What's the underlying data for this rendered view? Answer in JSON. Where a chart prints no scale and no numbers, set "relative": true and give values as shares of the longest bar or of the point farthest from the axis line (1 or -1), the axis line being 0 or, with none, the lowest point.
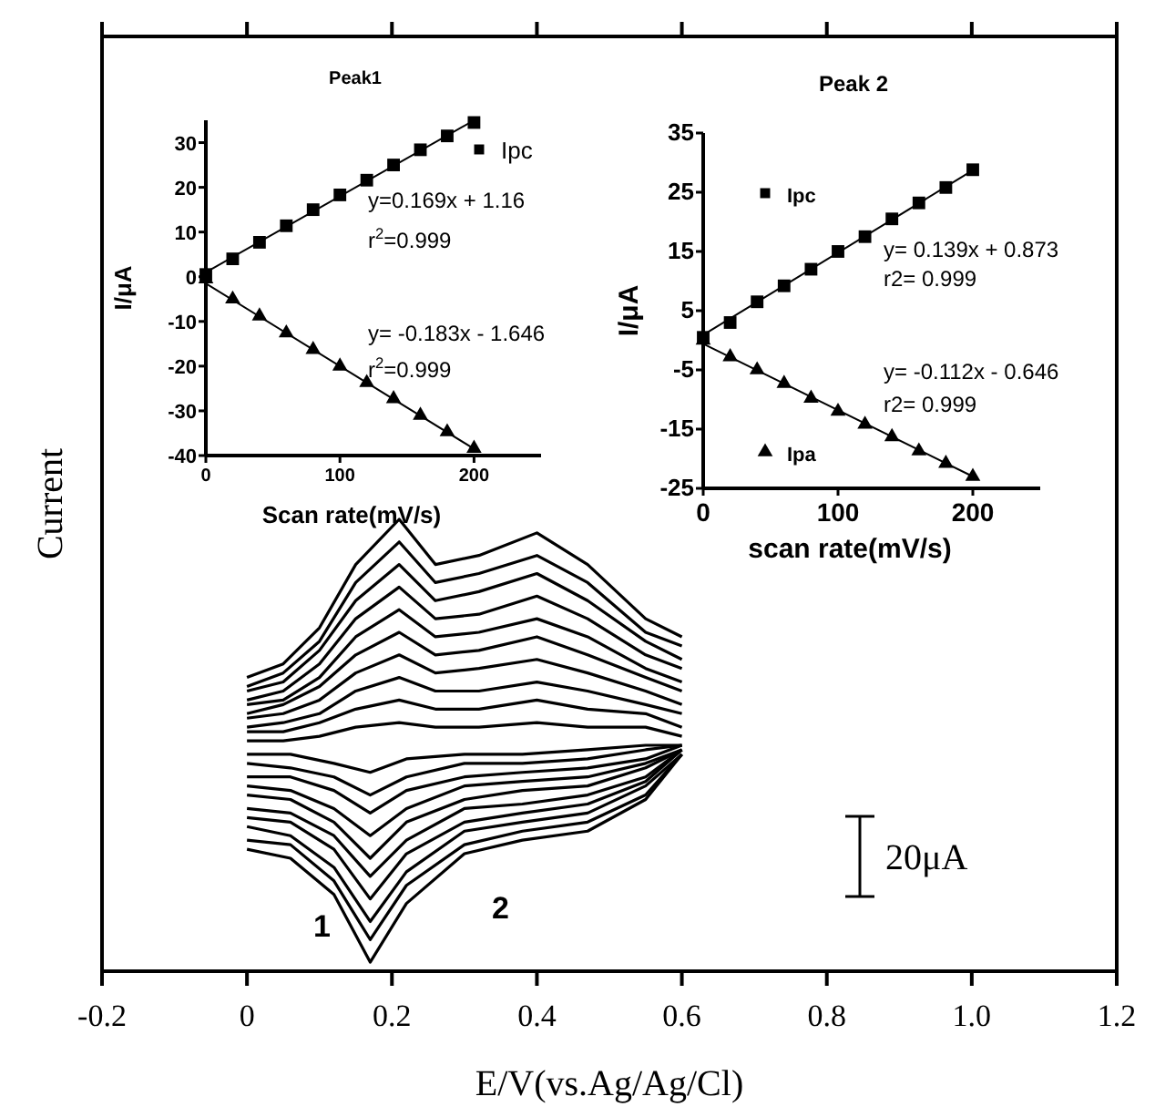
{
  "chart_data": [
    {
      "type": "line",
      "xlabel": "E/V(vs.Ag/Ag/Cl)",
      "ylabel": "Current",
      "relative": true,
      "xlim": [
        -0.2,
        1.2
      ],
      "xticks": [
        -0.2,
        0,
        0.2,
        0.4,
        0.6,
        0.8,
        {
          "value": 1,
          "label": "1.0"
        },
        1.2
      ],
      "series": [
        {
          "color": "#000000",
          "x": [
            0,
            0.05,
            0.1,
            0.15,
            0.21,
            0.26,
            0.32,
            0.4,
            0.47,
            0.55,
            0.6
          ],
          "values": [
            0.51,
            0.51,
            0.52,
            0.54,
            0.55,
            0.54,
            0.54,
            0.55,
            0.54,
            0.54,
            0.52
          ]
        },
        {
          "color": "#000000",
          "x": [
            0,
            0.05,
            0.1,
            0.15,
            0.21,
            0.26,
            0.32,
            0.4,
            0.47,
            0.55,
            0.6
          ],
          "values": [
            0.53,
            0.53,
            0.55,
            0.58,
            0.6,
            0.58,
            0.58,
            0.6,
            0.58,
            0.57,
            0.54
          ]
        },
        {
          "color": "#000000",
          "x": [
            0,
            0.05,
            0.1,
            0.15,
            0.21,
            0.26,
            0.32,
            0.4,
            0.47,
            0.55,
            0.6
          ],
          "values": [
            0.54,
            0.55,
            0.57,
            0.62,
            0.65,
            0.62,
            0.62,
            0.64,
            0.62,
            0.59,
            0.57
          ]
        },
        {
          "color": "#000000",
          "x": [
            0,
            0.05,
            0.1,
            0.15,
            0.21,
            0.26,
            0.32,
            0.4,
            0.47,
            0.55,
            0.6
          ],
          "values": [
            0.56,
            0.57,
            0.6,
            0.66,
            0.7,
            0.66,
            0.67,
            0.69,
            0.66,
            0.62,
            0.59
          ]
        },
        {
          "color": "#000000",
          "x": [
            0,
            0.05,
            0.1,
            0.15,
            0.21,
            0.26,
            0.32,
            0.4,
            0.47,
            0.55,
            0.6
          ],
          "values": [
            0.57,
            0.59,
            0.63,
            0.7,
            0.75,
            0.7,
            0.71,
            0.74,
            0.7,
            0.65,
            0.62
          ]
        },
        {
          "color": "#000000",
          "x": [
            0,
            0.05,
            0.1,
            0.15,
            0.21,
            0.26,
            0.32,
            0.4,
            0.47,
            0.55,
            0.6
          ],
          "values": [
            0.59,
            0.6,
            0.65,
            0.74,
            0.8,
            0.74,
            0.75,
            0.78,
            0.74,
            0.67,
            0.64
          ]
        },
        {
          "color": "#000000",
          "x": [
            0,
            0.05,
            0.1,
            0.15,
            0.21,
            0.26,
            0.32,
            0.4,
            0.47,
            0.55,
            0.6
          ],
          "values": [
            0.6,
            0.62,
            0.68,
            0.78,
            0.85,
            0.78,
            0.79,
            0.83,
            0.78,
            0.7,
            0.67
          ]
        },
        {
          "color": "#000000",
          "x": [
            0,
            0.05,
            0.1,
            0.15,
            0.21,
            0.26,
            0.32,
            0.4,
            0.47,
            0.55,
            0.6
          ],
          "values": [
            0.62,
            0.64,
            0.71,
            0.82,
            0.9,
            0.82,
            0.84,
            0.88,
            0.82,
            0.73,
            0.69
          ]
        },
        {
          "color": "#000000",
          "x": [
            0,
            0.05,
            0.1,
            0.15,
            0.21,
            0.26,
            0.32,
            0.4,
            0.47,
            0.55,
            0.6
          ],
          "values": [
            0.63,
            0.66,
            0.73,
            0.86,
            0.95,
            0.86,
            0.88,
            0.92,
            0.86,
            0.75,
            0.72
          ]
        },
        {
          "color": "#000000",
          "x": [
            0,
            0.05,
            0.1,
            0.15,
            0.21,
            0.26,
            0.32,
            0.4,
            0.47,
            0.55,
            0.6
          ],
          "values": [
            0.65,
            0.68,
            0.76,
            0.9,
            1.0,
            0.9,
            0.92,
            0.97,
            0.9,
            0.78,
            0.74
          ]
        },
        {
          "color": "#000000",
          "x": [
            0,
            0.06,
            0.12,
            0.17,
            0.22,
            0.3,
            0.38,
            0.47,
            0.55,
            0.6
          ],
          "values": [
            0.48,
            0.48,
            0.46,
            0.44,
            0.47,
            0.48,
            0.48,
            0.49,
            0.5,
            0.5
          ]
        },
        {
          "color": "#000000",
          "x": [
            0,
            0.06,
            0.12,
            0.17,
            0.22,
            0.3,
            0.38,
            0.47,
            0.55,
            0.6
          ],
          "values": [
            0.46,
            0.45,
            0.43,
            0.39,
            0.43,
            0.46,
            0.46,
            0.47,
            0.49,
            0.5
          ]
        },
        {
          "color": "#000000",
          "x": [
            0,
            0.06,
            0.12,
            0.17,
            0.22,
            0.3,
            0.38,
            0.47,
            0.55,
            0.6
          ],
          "values": [
            0.43,
            0.43,
            0.4,
            0.35,
            0.4,
            0.43,
            0.44,
            0.45,
            0.47,
            0.5
          ]
        },
        {
          "color": "#000000",
          "x": [
            0,
            0.06,
            0.12,
            0.17,
            0.22,
            0.3,
            0.38,
            0.47,
            0.55,
            0.6
          ],
          "values": [
            0.41,
            0.4,
            0.36,
            0.3,
            0.36,
            0.41,
            0.42,
            0.43,
            0.46,
            0.49
          ]
        },
        {
          "color": "#000000",
          "x": [
            0,
            0.06,
            0.12,
            0.17,
            0.22,
            0.3,
            0.38,
            0.47,
            0.55,
            0.6
          ],
          "values": [
            0.39,
            0.38,
            0.33,
            0.25,
            0.33,
            0.38,
            0.4,
            0.41,
            0.45,
            0.49
          ]
        },
        {
          "color": "#000000",
          "x": [
            0,
            0.06,
            0.12,
            0.17,
            0.22,
            0.3,
            0.38,
            0.47,
            0.55,
            0.6
          ],
          "values": [
            0.36,
            0.35,
            0.3,
            0.21,
            0.29,
            0.36,
            0.37,
            0.39,
            0.43,
            0.49
          ]
        },
        {
          "color": "#000000",
          "x": [
            0,
            0.06,
            0.12,
            0.17,
            0.22,
            0.3,
            0.38,
            0.47,
            0.55,
            0.6
          ],
          "values": [
            0.34,
            0.33,
            0.27,
            0.16,
            0.26,
            0.33,
            0.35,
            0.37,
            0.42,
            0.49
          ]
        },
        {
          "color": "#000000",
          "x": [
            0,
            0.06,
            0.12,
            0.17,
            0.22,
            0.3,
            0.38,
            0.47,
            0.55,
            0.6
          ],
          "values": [
            0.32,
            0.3,
            0.23,
            0.11,
            0.22,
            0.31,
            0.33,
            0.35,
            0.41,
            0.48
          ]
        },
        {
          "color": "#000000",
          "x": [
            0,
            0.06,
            0.12,
            0.17,
            0.22,
            0.3,
            0.38,
            0.47,
            0.55,
            0.6
          ],
          "values": [
            0.29,
            0.28,
            0.2,
            0.07,
            0.19,
            0.28,
            0.31,
            0.33,
            0.39,
            0.48
          ]
        },
        {
          "color": "#000000",
          "x": [
            0,
            0.06,
            0.12,
            0.17,
            0.22,
            0.3,
            0.38,
            0.47,
            0.55,
            0.6
          ],
          "values": [
            0.27,
            0.25,
            0.17,
            0.02,
            0.15,
            0.26,
            0.29,
            0.31,
            0.38,
            0.48
          ]
        }
      ],
      "annotations": [
        "1",
        "2",
        "20μA"
      ]
    },
    {
      "type": "scatter",
      "title": "Peak1",
      "xlabel": "Scan rate(mV/s)",
      "ylabel": "I/μA",
      "xlim": [
        0,
        250
      ],
      "xticks": [
        0,
        100,
        200
      ],
      "ylim": [
        -40,
        35
      ],
      "yticks": [
        -40,
        -30,
        -20,
        -10,
        0,
        10,
        20,
        30
      ],
      "legend": "top right",
      "x": [
        0,
        20,
        40,
        60,
        80,
        100,
        120,
        140,
        160,
        180,
        200
      ],
      "series": [
        {
          "name": "Ipc",
          "color": "#000000",
          "marker": "square",
          "values": [
            0.5,
            4,
            7.7,
            11.4,
            15,
            18.3,
            21.6,
            25,
            28.4,
            31.5,
            34.5
          ]
        },
        {
          "color": "#000000",
          "marker": "triangle",
          "values": [
            -0.5,
            -5,
            -8.8,
            -12.6,
            -16.3,
            -20,
            -23.7,
            -27.3,
            -31,
            -34.7,
            -38.4
          ]
        },
        {
          "type": "line",
          "color": "#000000",
          "x": [
            0,
            200
          ],
          "values": [
            1,
            35
          ]
        },
        {
          "type": "line",
          "color": "#000000",
          "x": [
            0,
            200
          ],
          "values": [
            -1.5,
            -38.5
          ]
        }
      ],
      "annotations": [
        "y=0.169x + 1.16",
        "r$^{2}$=0.999",
        "y= -0.183x - 1.646",
        "r$^{2}$=0.999"
      ]
    },
    {
      "type": "scatter",
      "title": "Peak 2",
      "xlabel": "scan rate(mV/s)",
      "ylabel": "I/μA",
      "xlim": [
        0,
        250
      ],
      "xticks": [
        0,
        100,
        200
      ],
      "ylim": [
        -25,
        35
      ],
      "yticks": [
        -25,
        -15,
        -5,
        5,
        15,
        25,
        35
      ],
      "legend": "left",
      "x": [
        0,
        20,
        40,
        60,
        80,
        100,
        120,
        140,
        160,
        180,
        200
      ],
      "series": [
        {
          "name": "Ipc",
          "color": "#000000",
          "marker": "square",
          "values": [
            0.5,
            3,
            6.5,
            9.2,
            12,
            15,
            17.5,
            20.5,
            23.2,
            25.8,
            28.8
          ]
        },
        {
          "name": "Ipa",
          "color": "#000000",
          "marker": "triangle",
          "values": [
            0,
            -2.8,
            -5,
            -7.3,
            -9.8,
            -12,
            -14.2,
            -16.3,
            -18.7,
            -20.8,
            -23
          ]
        },
        {
          "type": "line",
          "color": "#000000",
          "x": [
            0,
            200
          ],
          "values": [
            0.9,
            28.7
          ]
        },
        {
          "type": "line",
          "color": "#000000",
          "x": [
            0,
            200
          ],
          "values": [
            -0.6,
            -23
          ]
        }
      ],
      "annotations": [
        "y= 0.139x + 0.873",
        "r2= 0.999",
        "y= -0.112x - 0.646",
        "r2= 0.999"
      ]
    }
  ]
}
